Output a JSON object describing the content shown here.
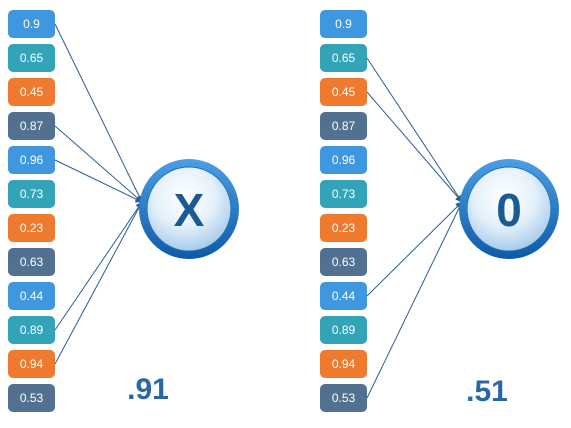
{
  "colors": {
    "blue": "#3f97e0",
    "teal": "#33a3b8",
    "orange": "#ee7a30",
    "slate": "#52708f",
    "connector": "#2a5d96"
  },
  "panels": [
    {
      "id": "left",
      "values": [
        {
          "label": "0.9",
          "color": "blue",
          "connected": true
        },
        {
          "label": "0.65",
          "color": "teal",
          "connected": false
        },
        {
          "label": "0.45",
          "color": "orange",
          "connected": false
        },
        {
          "label": "0.87",
          "color": "slate",
          "connected": true
        },
        {
          "label": "0.96",
          "color": "blue",
          "connected": true
        },
        {
          "label": "0.73",
          "color": "teal",
          "connected": false
        },
        {
          "label": "0.23",
          "color": "orange",
          "connected": false
        },
        {
          "label": "0.63",
          "color": "slate",
          "connected": false
        },
        {
          "label": "0.44",
          "color": "blue",
          "connected": false
        },
        {
          "label": "0.89",
          "color": "teal",
          "connected": true
        },
        {
          "label": "0.94",
          "color": "orange",
          "connected": true
        },
        {
          "label": "0.53",
          "color": "slate",
          "connected": false
        }
      ],
      "node_label": "X",
      "result": ".91"
    },
    {
      "id": "right",
      "values": [
        {
          "label": "0.9",
          "color": "blue",
          "connected": false
        },
        {
          "label": "0.65",
          "color": "teal",
          "connected": true
        },
        {
          "label": "0.45",
          "color": "orange",
          "connected": true
        },
        {
          "label": "0.87",
          "color": "slate",
          "connected": false
        },
        {
          "label": "0.96",
          "color": "blue",
          "connected": false
        },
        {
          "label": "0.73",
          "color": "teal",
          "connected": false
        },
        {
          "label": "0.23",
          "color": "orange",
          "connected": false
        },
        {
          "label": "0.63",
          "color": "slate",
          "connected": false
        },
        {
          "label": "0.44",
          "color": "blue",
          "connected": true
        },
        {
          "label": "0.89",
          "color": "teal",
          "connected": false
        },
        {
          "label": "0.94",
          "color": "orange",
          "connected": false
        },
        {
          "label": "0.53",
          "color": "slate",
          "connected": true
        }
      ],
      "node_label": "0",
      "result": ".51"
    }
  ]
}
